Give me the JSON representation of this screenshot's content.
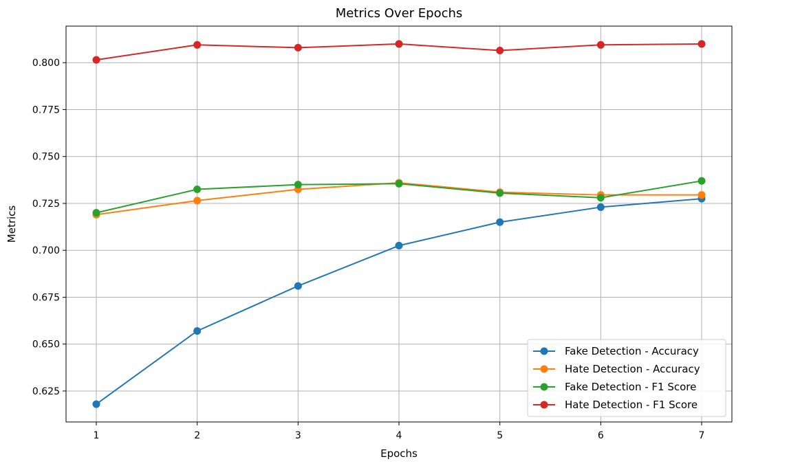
{
  "chart_data": {
    "type": "line",
    "title": "Metrics Over Epochs",
    "xlabel": "Epochs",
    "ylabel": "Metrics",
    "x": [
      1,
      2,
      3,
      4,
      5,
      6,
      7
    ],
    "xlim": [
      0.7,
      7.3
    ],
    "ylim": [
      0.6085,
      0.8195
    ],
    "xticks": [
      1,
      2,
      3,
      4,
      5,
      6,
      7
    ],
    "xtick_labels": [
      "1",
      "2",
      "3",
      "4",
      "5",
      "6",
      "7"
    ],
    "yticks": [
      0.625,
      0.65,
      0.675,
      0.7,
      0.725,
      0.75,
      0.775,
      0.8
    ],
    "ytick_labels": [
      "0.625",
      "0.650",
      "0.675",
      "0.700",
      "0.725",
      "0.750",
      "0.775",
      "0.800"
    ],
    "grid": true,
    "legend_position": "lower-right",
    "series": [
      {
        "name": "Fake Detection - Accuracy",
        "color": "#1f77b4",
        "marker": "circle",
        "values": [
          0.618,
          0.657,
          0.681,
          0.7025,
          0.715,
          0.723,
          0.7275
        ]
      },
      {
        "name": "Hate Detection - Accuracy",
        "color": "#ff7f0e",
        "marker": "circle",
        "values": [
          0.719,
          0.7265,
          0.7325,
          0.736,
          0.731,
          0.7295,
          0.7295
        ]
      },
      {
        "name": "Fake Detection - F1 Score",
        "color": "#2ca02c",
        "marker": "circle",
        "values": [
          0.72,
          0.7325,
          0.735,
          0.7355,
          0.7305,
          0.728,
          0.737
        ]
      },
      {
        "name": "Hate Detection - F1 Score",
        "color": "#d62728",
        "marker": "circle",
        "values": [
          0.8015,
          0.8095,
          0.808,
          0.81,
          0.8065,
          0.8095,
          0.81
        ]
      }
    ]
  }
}
